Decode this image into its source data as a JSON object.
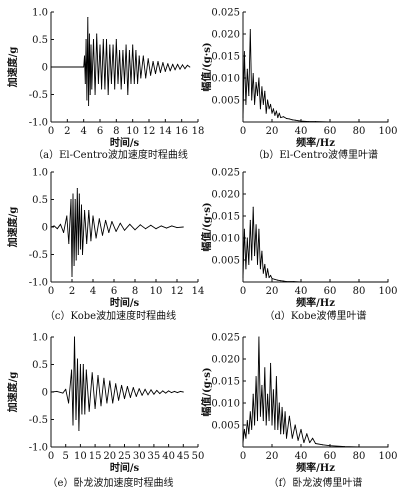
{
  "chart_data": [
    {
      "id": "a",
      "type": "line",
      "caption": "（a）El-Centro波加速度时程曲线",
      "xlabel": "时间/s",
      "ylabel": "加速度/g",
      "xlim": [
        0,
        18
      ],
      "ylim": [
        -1.0,
        1.0
      ],
      "xticks": [
        "0",
        "2",
        "4",
        "6",
        "8",
        "10",
        "12",
        "14",
        "16",
        "18"
      ],
      "yticks": [
        "-1.0",
        "-0.5",
        "0",
        "0.5",
        "1.0"
      ],
      "series": [
        {
          "x": [
            0,
            4.0,
            4.1,
            4.2,
            4.3,
            4.4,
            4.5,
            4.6,
            4.7,
            4.8,
            4.9,
            5.0,
            5.2,
            5.4,
            5.6,
            5.8,
            6.0,
            6.2,
            6.4,
            6.6,
            6.8,
            7.0,
            7.2,
            7.4,
            7.6,
            7.8,
            8.0,
            8.2,
            8.4,
            8.6,
            8.8,
            9.0,
            9.2,
            9.4,
            9.6,
            9.8,
            10.0,
            10.2,
            10.4,
            10.6,
            10.8,
            11.0,
            11.3,
            11.6,
            11.9,
            12.2,
            12.5,
            12.8,
            13.1,
            13.4,
            13.7,
            14.0,
            14.3,
            14.6,
            14.9,
            15.2,
            15.5,
            15.8,
            16.1,
            16.4,
            16.7,
            17.0
          ],
          "y": [
            0,
            0,
            0.2,
            -0.3,
            0.5,
            -0.6,
            0.9,
            -0.7,
            0.6,
            -0.5,
            0.4,
            -0.4,
            0.5,
            -0.5,
            0.6,
            -0.3,
            0.4,
            -0.4,
            0.5,
            -0.4,
            0.5,
            -0.5,
            0.4,
            -0.3,
            0.4,
            -0.4,
            0.5,
            -0.3,
            0.3,
            -0.4,
            0.3,
            -0.3,
            0.4,
            -0.5,
            0.3,
            -0.3,
            0.4,
            -0.3,
            0.3,
            -0.3,
            0.2,
            -0.2,
            0.2,
            -0.2,
            0.15,
            -0.15,
            0.1,
            -0.12,
            0.1,
            -0.1,
            0.08,
            -0.08,
            0.06,
            -0.07,
            0.05,
            -0.05,
            0.05,
            -0.04,
            0.04,
            -0.03,
            0.03,
            0
          ]
        }
      ]
    },
    {
      "id": "b",
      "type": "line",
      "caption": "（b）El-Centro波傅里叶谱",
      "xlabel": "频率/Hz",
      "ylabel": "幅值/(g·s)",
      "xlim": [
        0,
        100
      ],
      "ylim": [
        0,
        0.025
      ],
      "xticks": [
        "0",
        "20",
        "40",
        "60",
        "80",
        "100"
      ],
      "yticks": [
        "0.005",
        "0.010",
        "0.015",
        "0.020",
        "0.025"
      ],
      "series": [
        {
          "x": [
            0,
            1,
            2,
            3,
            4,
            5,
            6,
            7,
            8,
            9,
            10,
            11,
            12,
            13,
            14,
            15,
            16,
            17,
            18,
            19,
            20,
            21,
            22,
            23,
            24,
            25,
            26,
            28,
            30,
            32,
            34,
            36,
            38,
            40,
            45,
            50,
            60,
            70,
            80,
            90,
            100
          ],
          "y": [
            0.001,
            0.016,
            0.004,
            0.012,
            0.006,
            0.021,
            0.005,
            0.011,
            0.004,
            0.009,
            0.006,
            0.01,
            0.003,
            0.008,
            0.004,
            0.007,
            0.002,
            0.005,
            0.003,
            0.004,
            0.002,
            0.003,
            0.0015,
            0.0025,
            0.001,
            0.002,
            0.001,
            0.0012,
            0.0008,
            0.0007,
            0.0005,
            0.0004,
            0.0003,
            0.0002,
            0.0001,
            0.0001,
            0,
            0,
            0,
            0,
            0
          ]
        }
      ]
    },
    {
      "id": "c",
      "type": "line",
      "caption": "（c）Kobe波加速度时程曲线",
      "xlabel": "时间/s",
      "ylabel": "加速度/g",
      "xlim": [
        0,
        14
      ],
      "ylim": [
        -1.0,
        1.0
      ],
      "xticks": [
        "0",
        "2",
        "4",
        "6",
        "8",
        "10",
        "12",
        "14"
      ],
      "yticks": [
        "-1.0",
        "-0.5",
        "0",
        "0.5",
        "1.0"
      ],
      "series": [
        {
          "x": [
            0,
            0.3,
            0.6,
            0.9,
            1.2,
            1.5,
            1.7,
            1.9,
            2.0,
            2.1,
            2.2,
            2.3,
            2.4,
            2.5,
            2.6,
            2.7,
            2.8,
            2.9,
            3.0,
            3.2,
            3.4,
            3.6,
            3.8,
            4.0,
            4.3,
            4.6,
            4.9,
            5.2,
            5.5,
            5.8,
            6.2,
            6.6,
            7.0,
            7.5,
            8.0,
            8.5,
            9.0,
            9.5,
            10.0,
            10.5,
            11.0,
            11.5,
            12.0,
            12.6
          ],
          "y": [
            0,
            0.02,
            -0.03,
            0.05,
            -0.1,
            0.2,
            -0.3,
            0.5,
            -0.9,
            0.6,
            -0.7,
            0.5,
            -0.6,
            0.7,
            -0.5,
            0.6,
            -0.4,
            0.4,
            -0.5,
            0.3,
            -0.3,
            0.3,
            -0.25,
            0.2,
            -0.2,
            0.15,
            -0.15,
            0.12,
            -0.1,
            0.1,
            -0.08,
            0.07,
            -0.06,
            0.05,
            -0.05,
            0.04,
            -0.03,
            0.03,
            -0.03,
            0.02,
            -0.02,
            0.02,
            -0.01,
            0
          ]
        }
      ]
    },
    {
      "id": "d",
      "type": "line",
      "caption": "（d）Kobe波傅里叶谱",
      "xlabel": "频率/Hz",
      "ylabel": "幅值/(g·s)",
      "xlim": [
        0,
        100
      ],
      "ylim": [
        0,
        0.025
      ],
      "xticks": [
        "0",
        "20",
        "40",
        "60",
        "80",
        "100"
      ],
      "yticks": [
        "0.005",
        "0.010",
        "0.015",
        "0.020",
        "0.025"
      ],
      "series": [
        {
          "x": [
            0,
            1,
            2,
            3,
            4,
            5,
            6,
            7,
            8,
            9,
            10,
            11,
            12,
            13,
            14,
            15,
            16,
            17,
            18,
            19,
            20,
            22,
            24,
            26,
            28,
            30,
            35,
            40,
            50,
            60,
            80,
            100
          ],
          "y": [
            0.001,
            0.012,
            0.003,
            0.01,
            0.004,
            0.014,
            0.005,
            0.017,
            0.006,
            0.013,
            0.004,
            0.012,
            0.003,
            0.007,
            0.002,
            0.004,
            0.001,
            0.003,
            0.001,
            0.0015,
            0.0008,
            0.0006,
            0.0004,
            0.0003,
            0.0002,
            0.0001,
            0.0001,
            0,
            0,
            0,
            0,
            0
          ]
        }
      ]
    },
    {
      "id": "e",
      "type": "line",
      "caption": "（e）卧龙波加速度时程曲线",
      "xlabel": "时间/s",
      "ylabel": "加速度/g",
      "xlim": [
        0,
        50
      ],
      "ylim": [
        -1.0,
        1.0
      ],
      "xticks": [
        "0",
        "5",
        "10",
        "15",
        "20",
        "25",
        "30",
        "35",
        "40",
        "45",
        "50"
      ],
      "yticks": [
        "-1.0",
        "-0.5",
        "0",
        "0.5",
        "1.0"
      ],
      "series": [
        {
          "x": [
            0,
            2,
            4,
            5,
            6,
            7,
            7.5,
            8,
            8.5,
            9,
            9.5,
            10,
            10.5,
            11,
            11.5,
            12,
            13,
            14,
            15,
            16,
            17,
            18,
            19,
            20,
            21,
            22,
            23,
            24,
            25,
            26,
            27,
            28,
            29,
            30,
            31,
            32,
            33,
            34,
            35,
            36,
            37,
            38,
            39,
            40,
            41,
            42,
            43,
            44,
            45
          ],
          "y": [
            0,
            0.01,
            -0.02,
            0.05,
            -0.2,
            0.4,
            -0.6,
            1.0,
            -0.5,
            0.6,
            -0.7,
            0.5,
            -0.4,
            0.5,
            -0.4,
            0.4,
            -0.35,
            0.35,
            -0.3,
            0.3,
            -0.25,
            0.25,
            -0.2,
            0.2,
            -0.2,
            0.15,
            -0.15,
            0.12,
            -0.12,
            0.1,
            -0.1,
            0.08,
            -0.08,
            0.06,
            -0.06,
            0.05,
            -0.05,
            0.04,
            -0.04,
            0.03,
            -0.03,
            0.02,
            -0.02,
            0.02,
            -0.01,
            0.01,
            -0.01,
            0.01,
            0
          ]
        }
      ]
    },
    {
      "id": "f",
      "type": "line",
      "caption": "（f）卧龙波傅里叶谱",
      "xlabel": "频率/Hz",
      "ylabel": "幅值/(g·s)",
      "xlim": [
        0,
        100
      ],
      "ylim": [
        0,
        0.025
      ],
      "xticks": [
        "0",
        "20",
        "40",
        "60",
        "80",
        "100"
      ],
      "yticks": [
        "0.005",
        "0.010",
        "0.015",
        "0.020",
        "0.025"
      ],
      "series": [
        {
          "x": [
            0,
            1,
            2,
            3,
            4,
            5,
            6,
            7,
            8,
            9,
            10,
            11,
            12,
            13,
            14,
            15,
            16,
            17,
            18,
            19,
            20,
            21,
            22,
            23,
            24,
            25,
            26,
            27,
            28,
            29,
            30,
            32,
            34,
            36,
            38,
            40,
            42,
            44,
            46,
            48,
            50,
            55,
            60,
            70,
            80,
            90,
            100
          ],
          "y": [
            0.001,
            0.004,
            0.002,
            0.006,
            0.003,
            0.008,
            0.004,
            0.012,
            0.005,
            0.016,
            0.006,
            0.025,
            0.007,
            0.014,
            0.006,
            0.018,
            0.005,
            0.012,
            0.006,
            0.019,
            0.005,
            0.013,
            0.004,
            0.016,
            0.004,
            0.01,
            0.003,
            0.009,
            0.003,
            0.008,
            0.002,
            0.007,
            0.002,
            0.005,
            0.0015,
            0.004,
            0.001,
            0.003,
            0.001,
            0.002,
            0.0008,
            0.0005,
            0.0003,
            0.0001,
            0,
            0,
            0
          ]
        }
      ]
    }
  ]
}
